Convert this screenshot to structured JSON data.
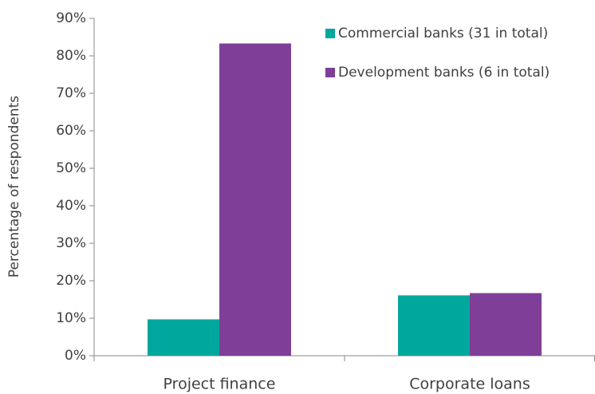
{
  "chart_data": {
    "type": "bar",
    "y_label": "Percentage of respondents",
    "categories": [
      "Project finance",
      "Corporate loans"
    ],
    "series": [
      {
        "name": "Commercial banks (31 in total)",
        "color": "#00a79d",
        "values": [
          9.7,
          16.1
        ]
      },
      {
        "name": "Development banks (6 in total)",
        "color": "#7f3f98",
        "values": [
          83.3,
          16.7
        ]
      }
    ],
    "ylim": [
      0,
      90
    ],
    "yticks": [
      {
        "value": 0,
        "label": "0%"
      },
      {
        "value": 10,
        "label": "10%"
      },
      {
        "value": 20,
        "label": "20%"
      },
      {
        "value": 30,
        "label": "30%"
      },
      {
        "value": 40,
        "label": "40%"
      },
      {
        "value": 50,
        "label": "50%"
      },
      {
        "value": 60,
        "label": "60%"
      },
      {
        "value": 70,
        "label": "70%"
      },
      {
        "value": 80,
        "label": "80%"
      },
      {
        "value": 90,
        "label": "90%"
      }
    ],
    "grid": false,
    "legend": "upper right"
  }
}
